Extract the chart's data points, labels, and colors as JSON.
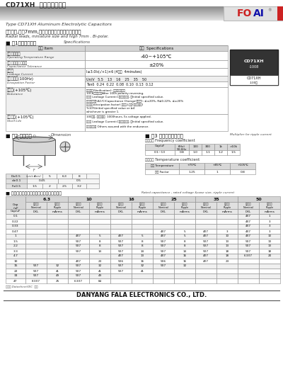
{
  "title_cn": "CD71XH  型铝电解电容器",
  "title_en": "Type CD71XH Aluminum Electrolytic Capacitors",
  "subtitle_cn": "单向引出,高度7mm,无极极性、小体积、耐高温品。",
  "subtitle_en": "Radial leads, miniature size and high 7mm . Bi-polar.",
  "spec_section": "■ 表1主要技术性能",
  "spec_section_en": "Specifications",
  "voltage_cols": [
    "6.3",
    "10",
    "16",
    "25",
    "35",
    "50"
  ],
  "cap_rows": [
    "0.1",
    "0.22",
    "0.33",
    "0.47",
    "1",
    "1.5",
    "2.2",
    "3.3",
    "4.7",
    "10",
    "15",
    "22",
    "33",
    "47"
  ],
  "table_data": {
    "0.1": {
      "50": [
        "4X7",
        "1"
      ]
    },
    "0.22": {
      "50": [
        "4X7",
        "3"
      ]
    },
    "0.33": {
      "50": [
        "4X7",
        "3"
      ]
    },
    "0.47": {
      "50": [
        "4X7",
        "3"
      ],
      "35": [
        "4X7",
        "3"
      ],
      "25": [
        "4X7",
        "5"
      ]
    },
    "1": {
      "50": [
        "4X7",
        "10"
      ],
      "35": [
        "4X7",
        "10"
      ],
      "25": [
        "4X7",
        "5"
      ],
      "16": [
        "4X7",
        "5"
      ],
      "10": [
        "4X7",
        "5"
      ]
    },
    "1.5": {
      "50": [
        "5X7",
        "13"
      ],
      "35": [
        "5X7",
        "13"
      ],
      "25": [
        "5X7",
        "8"
      ],
      "16": [
        "5X7",
        "8"
      ],
      "10": [
        "5X7",
        "8"
      ]
    },
    "2.2": {
      "50": [
        "5X7",
        "13"
      ],
      "35": [
        "5X7",
        "13"
      ],
      "25": [
        "5X7",
        "8"
      ],
      "16": [
        "5X7",
        "8"
      ],
      "10": [
        "5X7",
        "8"
      ]
    },
    "3.3": {
      "50": [
        "5X7",
        "18"
      ],
      "35": [
        "5X7",
        "18"
      ],
      "25": [
        "5X7",
        "14"
      ],
      "16": [
        "5X7",
        "14"
      ],
      "10": [
        "5X7",
        "14"
      ]
    },
    "4.7": {
      "50": [
        "6.3X7",
        "20"
      ],
      "35": [
        "4X7",
        "18"
      ],
      "25": [
        "4X7",
        "16"
      ],
      "16": [
        "4X7",
        "13"
      ]
    },
    "10": {
      "35": [
        "4X7",
        "23"
      ],
      "25": [
        "5X6",
        "16"
      ],
      "16": [
        "5X6",
        "16"
      ],
      "10": [
        "4X7",
        "23"
      ]
    },
    "15": {
      "10": [
        "5X7",
        "32"
      ],
      "16": [
        "5X7",
        "32"
      ],
      "25": [
        "5X7",
        "32"
      ],
      "6.3": [
        "5X7",
        "32"
      ]
    },
    "22": {
      "10": [
        "5X7",
        "41"
      ],
      "16": [
        "5X7",
        "41"
      ],
      "6.3": [
        "5X7",
        "41"
      ]
    },
    "33": {
      "10": [
        "5X7",
        "49"
      ],
      "6.3": [
        "5X7",
        "49"
      ]
    },
    "47": {
      "6.3": [
        "8.3X7",
        "25"
      ],
      "10": [
        "6.3X7",
        "84"
      ]
    }
  },
  "footer": "DANYANG FALA ELECTRONICS CO., LTD."
}
